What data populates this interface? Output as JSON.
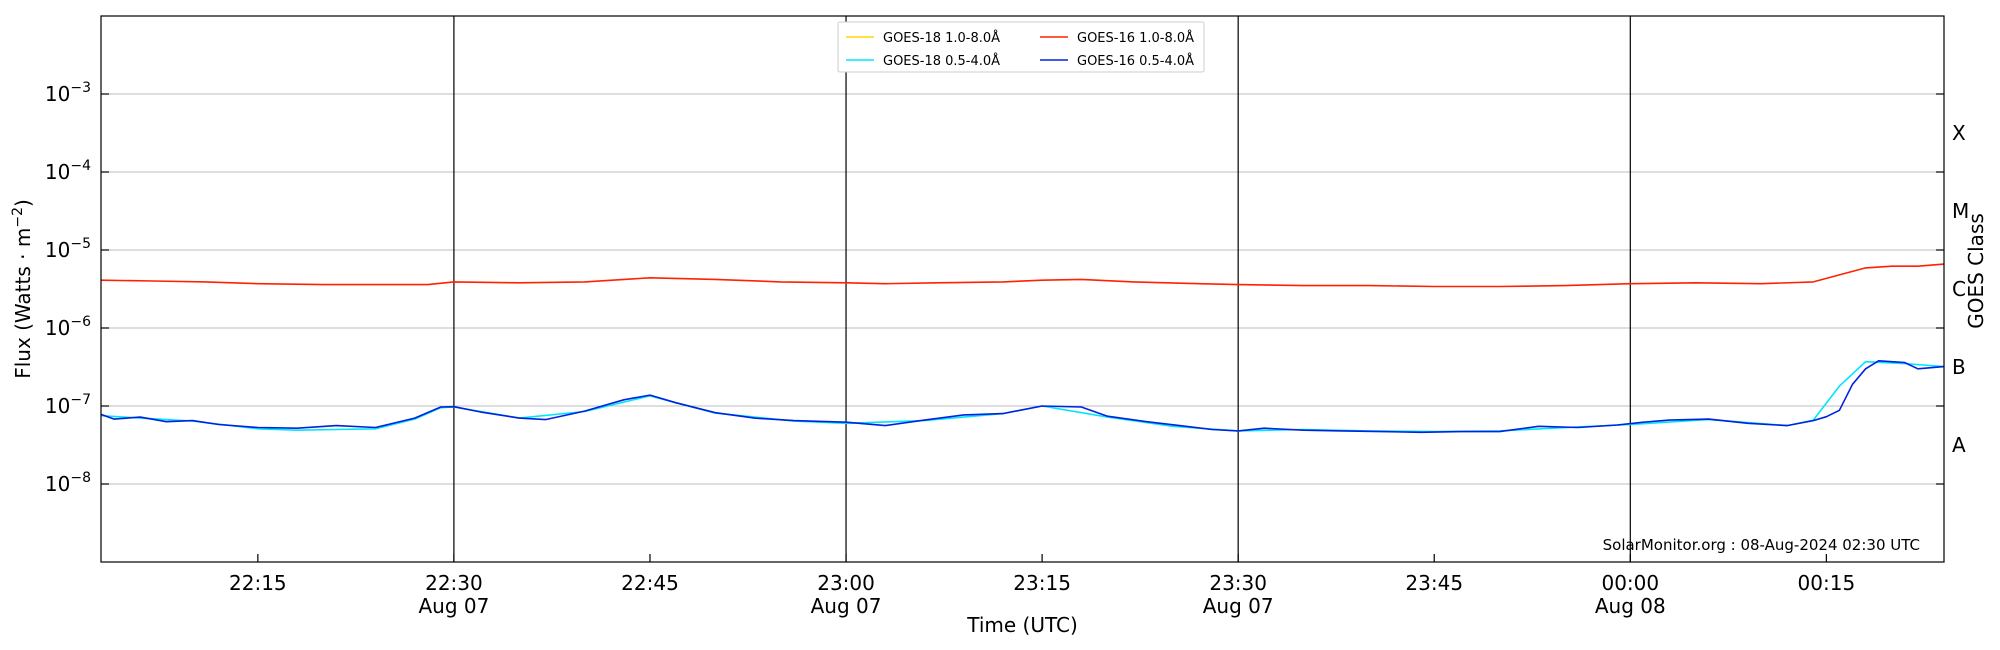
{
  "chart_data": {
    "type": "line",
    "xlabel": "Time (UTC)",
    "ylabel_parts": [
      "Flux (Watts · m",
      "−2",
      ")"
    ],
    "y2label": "GOES Class",
    "yscale": "log",
    "ylim": [
      1e-09,
      0.01
    ],
    "xlim": [
      "22:03",
      "00:24"
    ],
    "x_ticks": [
      {
        "label": "22:15",
        "date": ""
      },
      {
        "label": "22:30",
        "date": "Aug 07"
      },
      {
        "label": "22:45",
        "date": ""
      },
      {
        "label": "23:00",
        "date": "Aug 07"
      },
      {
        "label": "23:15",
        "date": ""
      },
      {
        "label": "23:30",
        "date": "Aug 07"
      },
      {
        "label": "23:45",
        "date": ""
      },
      {
        "label": "00:00",
        "date": "Aug 08"
      },
      {
        "label": "00:15",
        "date": ""
      }
    ],
    "y_ticks": [
      {
        "base": "10",
        "exp": "−8",
        "value": 1e-08
      },
      {
        "base": "10",
        "exp": "−7",
        "value": 1e-07
      },
      {
        "base": "10",
        "exp": "−6",
        "value": 1e-06
      },
      {
        "base": "10",
        "exp": "−5",
        "value": 1e-05
      },
      {
        "base": "10",
        "exp": "−4",
        "value": 0.0001
      },
      {
        "base": "10",
        "exp": "−3",
        "value": 0.001
      }
    ],
    "class_labels": [
      {
        "label": "A",
        "value": 3.16e-08
      },
      {
        "label": "B",
        "value": 3.16e-07
      },
      {
        "label": "C",
        "value": 3.16e-06
      },
      {
        "label": "M",
        "value": 3.16e-05
      },
      {
        "label": "X",
        "value": 0.000316
      }
    ],
    "vertical_lines": [
      "22:30",
      "23:00",
      "23:30",
      "00:00"
    ],
    "grid": "horizontal",
    "legend_location": "top-center",
    "legend": [
      {
        "label": "GOES-18 1.0-8.0Å",
        "color": "#ffd700"
      },
      {
        "label": "GOES-18 0.5-4.0Å",
        "color": "#00e5ff"
      },
      {
        "label": "GOES-16 1.0-8.0Å",
        "color": "#ff2200"
      },
      {
        "label": "GOES-16 0.5-4.0Å",
        "color": "#0022dd"
      }
    ],
    "series": [
      {
        "name": "GOES-16 1.0-8.0Å",
        "color": "#ff2200",
        "x": [
          "22:03",
          "22:07",
          "22:11",
          "22:15",
          "22:20",
          "22:25",
          "22:28",
          "22:30",
          "22:35",
          "22:40",
          "22:45",
          "22:50",
          "22:55",
          "23:00",
          "23:03",
          "23:07",
          "23:12",
          "23:15",
          "23:18",
          "23:22",
          "23:27",
          "23:30",
          "23:35",
          "23:40",
          "23:45",
          "23:50",
          "23:55",
          "00:00",
          "00:05",
          "00:10",
          "00:14",
          "00:16",
          "00:18",
          "00:20",
          "00:22",
          "00:24"
        ],
        "values": [
          4.1e-06,
          4e-06,
          3.9e-06,
          3.7e-06,
          3.6e-06,
          3.6e-06,
          3.6e-06,
          3.9e-06,
          3.8e-06,
          3.9e-06,
          4.4e-06,
          4.2e-06,
          3.9e-06,
          3.8e-06,
          3.7e-06,
          3.8e-06,
          3.9e-06,
          4.1e-06,
          4.2e-06,
          3.9e-06,
          3.7e-06,
          3.6e-06,
          3.5e-06,
          3.5e-06,
          3.4e-06,
          3.4e-06,
          3.5e-06,
          3.7e-06,
          3.8e-06,
          3.7e-06,
          3.9e-06,
          4.8e-06,
          5.9e-06,
          6.2e-06,
          6.2e-06,
          6.6e-06
        ]
      },
      {
        "name": "GOES-16 0.5-4.0Å",
        "color": "#0022dd",
        "x": [
          "22:03",
          "22:04",
          "22:06",
          "22:08",
          "22:10",
          "22:12",
          "22:15",
          "22:18",
          "22:21",
          "22:24",
          "22:27",
          "22:29",
          "22:30",
          "22:32",
          "22:35",
          "22:37",
          "22:40",
          "22:43",
          "22:45",
          "22:47",
          "22:50",
          "22:53",
          "22:56",
          "23:00",
          "23:03",
          "23:06",
          "23:09",
          "23:12",
          "23:15",
          "23:18",
          "23:20",
          "23:23",
          "23:26",
          "23:28",
          "23:30",
          "23:32",
          "23:35",
          "23:38",
          "23:41",
          "23:44",
          "23:47",
          "23:50",
          "23:53",
          "23:56",
          "23:59",
          "00:01",
          "00:03",
          "00:06",
          "00:09",
          "00:12",
          "00:14",
          "00:15",
          "00:16",
          "00:17",
          "00:18",
          "00:19",
          "00:21",
          "00:22",
          "00:24"
        ],
        "values": [
          7.8e-08,
          6.8e-08,
          7.2e-08,
          6.3e-08,
          6.5e-08,
          5.8e-08,
          5.3e-08,
          5.2e-08,
          5.6e-08,
          5.3e-08,
          7e-08,
          9.7e-08,
          9.8e-08,
          8.4e-08,
          7e-08,
          6.7e-08,
          8.6e-08,
          1.2e-07,
          1.38e-07,
          1.1e-07,
          8.2e-08,
          7e-08,
          6.5e-08,
          6.2e-08,
          5.6e-08,
          6.6e-08,
          7.7e-08,
          8e-08,
          1e-07,
          9.7e-08,
          7.4e-08,
          6.3e-08,
          5.5e-08,
          5e-08,
          4.8e-08,
          5.2e-08,
          4.9e-08,
          4.8e-08,
          4.7e-08,
          4.6e-08,
          4.7e-08,
          4.7e-08,
          5.5e-08,
          5.3e-08,
          5.7e-08,
          6.2e-08,
          6.6e-08,
          6.8e-08,
          6e-08,
          5.6e-08,
          6.5e-08,
          7.3e-08,
          8.8e-08,
          1.9e-07,
          3e-07,
          3.8e-07,
          3.6e-07,
          3e-07,
          3.2e-07
        ]
      },
      {
        "name": "GOES-18 0.5-4.0Å",
        "color": "#00e5ff",
        "x": [
          "22:03",
          "22:06",
          "22:10",
          "22:15",
          "22:18",
          "22:21",
          "22:24",
          "22:27",
          "22:29",
          "22:30",
          "22:35",
          "22:40",
          "22:45",
          "22:50",
          "22:56",
          "23:00",
          "23:06",
          "23:12",
          "23:15",
          "23:20",
          "23:25",
          "23:30",
          "23:35",
          "23:40",
          "23:45",
          "23:50",
          "23:56",
          "00:00",
          "00:06",
          "00:12",
          "00:14",
          "00:16",
          "00:18",
          "00:21",
          "00:24"
        ],
        "values": [
          7.5e-08,
          7e-08,
          6.4e-08,
          5.1e-08,
          4.9e-08,
          5e-08,
          5.1e-08,
          6.8e-08,
          9.5e-08,
          9.7e-08,
          7e-08,
          8.5e-08,
          1.35e-07,
          8.1e-08,
          6.4e-08,
          6e-08,
          6.5e-08,
          8e-08,
          1e-07,
          7.2e-08,
          5.5e-08,
          4.8e-08,
          5e-08,
          4.8e-08,
          4.7e-08,
          4.8e-08,
          5.4e-08,
          5.8e-08,
          6.7e-08,
          5.6e-08,
          6.6e-08,
          1.8e-07,
          3.7e-07,
          3.5e-07,
          3.2e-07
        ]
      }
    ]
  },
  "credit_text": "SolarMonitor.org : 08-Aug-2024 02:30 UTC"
}
